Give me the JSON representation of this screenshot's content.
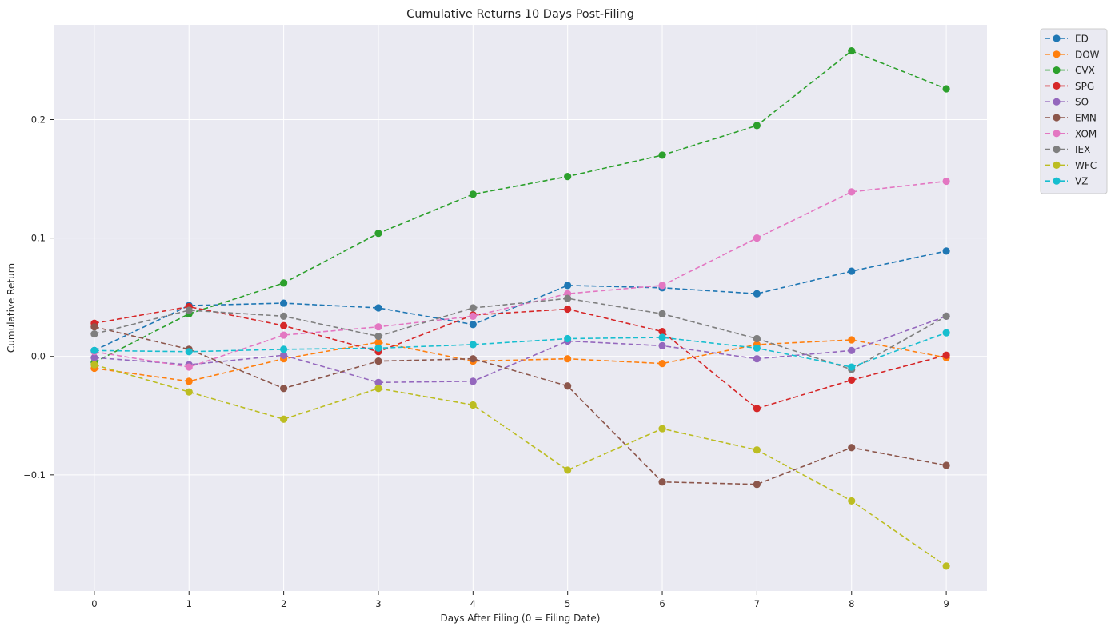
{
  "chart_data": {
    "type": "line",
    "title": "Cumulative Returns 10 Days Post-Filing",
    "xlabel": "Days After Filing (0 = Filing Date)",
    "ylabel": "Cumulative Return",
    "x": [
      0,
      1,
      2,
      3,
      4,
      5,
      6,
      7,
      8,
      9
    ],
    "xlim": [
      -0.43,
      9.43
    ],
    "ylim": [
      -0.198,
      0.28
    ],
    "yticks": [
      -0.1,
      0.0,
      0.1,
      0.2
    ],
    "ytick_labels": [
      "−0.1",
      "0.0",
      "0.1",
      "0.2"
    ],
    "xtick_labels": [
      "0",
      "1",
      "2",
      "3",
      "4",
      "5",
      "6",
      "7",
      "8",
      "9"
    ],
    "grid": true,
    "legend_placement": "outside-top-right",
    "line_style": "dashed",
    "marker": "circle",
    "background_color": "#eaeaf2",
    "series": [
      {
        "name": "ED",
        "color": "#1f77b4",
        "values": [
          0.005,
          0.043,
          0.045,
          0.041,
          0.027,
          0.06,
          0.058,
          0.053,
          0.072,
          0.089
        ]
      },
      {
        "name": "DOW",
        "color": "#ff7f0e",
        "values": [
          -0.01,
          -0.021,
          -0.002,
          0.012,
          -0.004,
          -0.002,
          -0.006,
          0.01,
          0.014,
          -0.001
        ]
      },
      {
        "name": "CVX",
        "color": "#2ca02c",
        "values": [
          -0.005,
          0.036,
          0.062,
          0.104,
          0.137,
          0.152,
          0.17,
          0.195,
          0.258,
          0.226
        ]
      },
      {
        "name": "SPG",
        "color": "#d62728",
        "values": [
          0.028,
          0.042,
          0.026,
          0.004,
          0.035,
          0.04,
          0.021,
          -0.044,
          -0.02,
          0.001
        ]
      },
      {
        "name": "SO",
        "color": "#9467bd",
        "values": [
          -0.001,
          -0.007,
          0.001,
          -0.022,
          -0.021,
          0.013,
          0.009,
          -0.002,
          0.005,
          0.034
        ]
      },
      {
        "name": "EMN",
        "color": "#8c564b",
        "values": [
          0.025,
          0.006,
          -0.027,
          -0.004,
          -0.002,
          -0.025,
          -0.106,
          -0.108,
          -0.077,
          -0.092
        ]
      },
      {
        "name": "XOM",
        "color": "#e377c2",
        "values": [
          0.004,
          -0.009,
          0.018,
          0.025,
          0.034,
          0.053,
          0.06,
          0.1,
          0.139,
          0.148
        ]
      },
      {
        "name": "IEX",
        "color": "#7f7f7f",
        "values": [
          0.019,
          0.039,
          0.034,
          0.017,
          0.041,
          0.049,
          0.036,
          0.015,
          -0.011,
          0.034
        ]
      },
      {
        "name": "WFC",
        "color": "#bcbd22",
        "values": [
          -0.007,
          -0.03,
          -0.053,
          -0.027,
          -0.041,
          -0.096,
          -0.061,
          -0.079,
          -0.122,
          -0.177
        ]
      },
      {
        "name": "VZ",
        "color": "#17becf",
        "values": [
          0.005,
          0.004,
          0.006,
          0.007,
          0.01,
          0.015,
          0.016,
          0.007,
          -0.009,
          0.02
        ]
      }
    ]
  }
}
